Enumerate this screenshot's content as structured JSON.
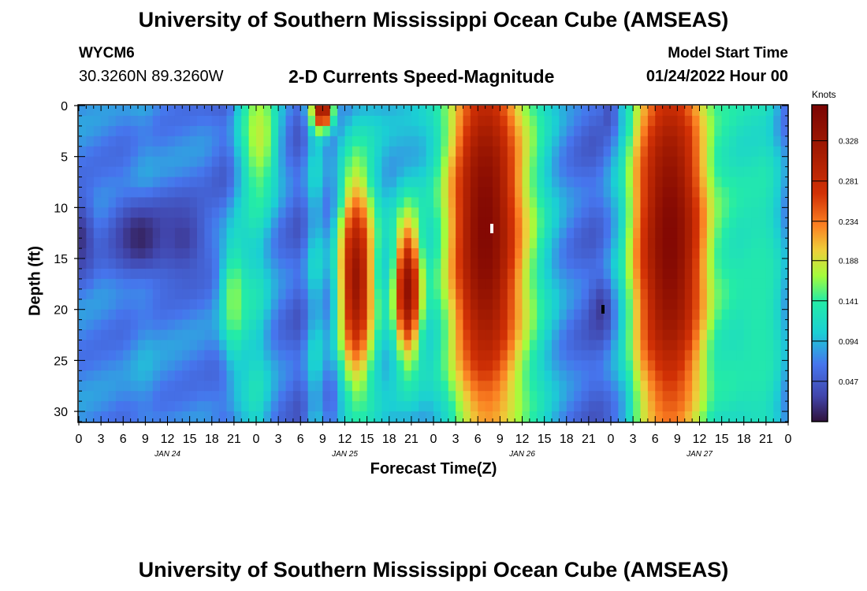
{
  "header": {
    "title": "University of Southern Mississippi Ocean Cube (AMSEAS)",
    "station": "WYCM6",
    "latlon": "30.3260N  89.3260W",
    "subtitle": "2-D Currents Speed-Magnitude",
    "model_start_label": "Model Start Time",
    "model_start_time": "01/24/2022 Hour 00"
  },
  "footer": {
    "title": "University of Southern Mississippi Ocean Cube (AMSEAS)"
  },
  "chart_data": {
    "type": "heatmap",
    "xlabel": "Forecast Time(Z)",
    "ylabel": "Depth (ft)",
    "x_tick_labels": [
      "0",
      "3",
      "6",
      "9",
      "12",
      "15",
      "18",
      "21",
      "0",
      "3",
      "6",
      "9",
      "12",
      "15",
      "18",
      "21",
      "0",
      "3",
      "6",
      "9",
      "12",
      "15",
      "18",
      "21",
      "0",
      "3",
      "6",
      "9",
      "12",
      "15",
      "18",
      "21",
      "0"
    ],
    "date_labels": [
      "JAN 24",
      "JAN 25",
      "JAN 26",
      "JAN 27"
    ],
    "x_range_hours": [
      0,
      96
    ],
    "y_ticks": [
      0,
      5,
      10,
      15,
      20,
      25,
      30
    ],
    "y_range_ft": [
      0,
      31
    ],
    "y_inverted": true,
    "colorbar": {
      "label": "Knots",
      "ticks": [
        0.047,
        0.094,
        0.141,
        0.188,
        0.234,
        0.281,
        0.328
      ],
      "range": [
        0,
        0.37
      ]
    },
    "features": [
      {
        "hours_center": 8.5,
        "depth_center": 13,
        "hours_width": 4,
        "depth_width": 4,
        "speed": 0.01
      },
      {
        "hours_center": 14,
        "depth_center": 13,
        "hours_width": 3.5,
        "depth_width": 4,
        "speed": 0.025
      },
      {
        "hours_center": 0.5,
        "depth_center": 13,
        "hours_width": 1.5,
        "depth_width": 4,
        "speed": 0.02
      },
      {
        "hours_center": 21,
        "depth_center": 19,
        "hours_width": 2,
        "depth_width": 7,
        "speed": 0.165
      },
      {
        "hours_center": 24.5,
        "depth_center": 3,
        "hours_width": 2.5,
        "depth_width": 6,
        "speed": 0.18
      },
      {
        "hours_center": 33,
        "depth_center": 0.5,
        "hours_width": 1.5,
        "depth_width": 2,
        "speed": 0.33
      },
      {
        "hours_center": 37.5,
        "depth_center": 17,
        "hours_width": 2.5,
        "depth_width": 11,
        "speed": 0.33
      },
      {
        "hours_center": 44.5,
        "depth_center": 18,
        "hours_width": 1.8,
        "depth_width": 7,
        "speed": 0.34
      },
      {
        "hours_center": 55,
        "depth_center": 12,
        "hours_width": 5.5,
        "depth_width": 22,
        "speed": 0.36
      },
      {
        "hours_center": 71,
        "depth_center": 20,
        "hours_width": 1.5,
        "depth_width": 3,
        "speed": 0.005
      },
      {
        "hours_center": 72,
        "depth_center": 1,
        "hours_width": 1,
        "depth_width": 2,
        "speed": 0.01
      },
      {
        "hours_center": 80,
        "depth_center": 13,
        "hours_width": 5.5,
        "depth_width": 22,
        "speed": 0.36
      },
      {
        "hours_center": 92,
        "depth_center": 20,
        "hours_width": 3.5,
        "depth_width": 14,
        "speed": 0.135
      }
    ]
  }
}
